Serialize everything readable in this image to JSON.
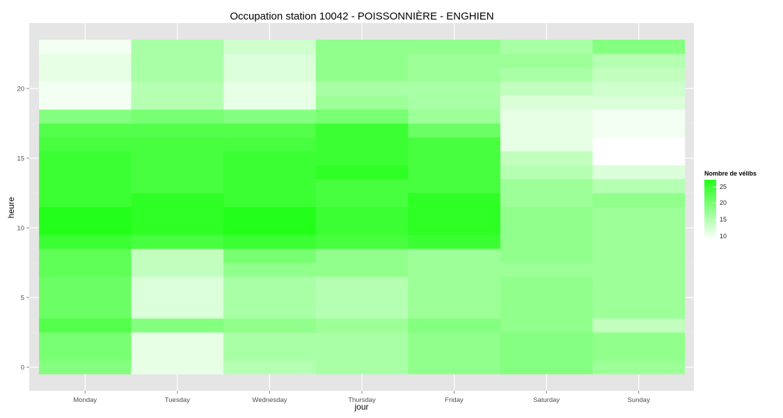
{
  "chart_data": {
    "type": "heatmap",
    "title": "Occupation station 10042 - POISSONNIÈRE - ENGHIEN",
    "xlabel": "jour",
    "ylabel": "heure",
    "categories": [
      "Monday",
      "Tuesday",
      "Wednesday",
      "Thursday",
      "Friday",
      "Saturday",
      "Sunday"
    ],
    "hours": [
      0,
      1,
      2,
      3,
      4,
      5,
      6,
      7,
      8,
      9,
      10,
      11,
      12,
      13,
      14,
      15,
      16,
      17,
      18,
      19,
      20,
      21,
      22,
      23
    ],
    "y_ticks": [
      0,
      5,
      10,
      15,
      20
    ],
    "ylim": [
      -0.5,
      23.5
    ],
    "legend": {
      "title": "Nombre de vélibs",
      "ticks": [
        10,
        15,
        20,
        25
      ],
      "low": 9,
      "high": 27,
      "low_color": "#ffffff",
      "high_color": "#22ff18",
      "position": "right"
    },
    "background_color": "#e5e5e5",
    "grid": true,
    "values": {
      "Monday": [
        19,
        20,
        20,
        23,
        21,
        21,
        21,
        22,
        22,
        25,
        27,
        27,
        25,
        25,
        25,
        25,
        24,
        23,
        19,
        10,
        10,
        11,
        11,
        10
      ],
      "Tuesday": [
        11,
        11,
        11,
        19,
        12,
        12,
        12,
        14,
        14,
        24,
        26,
        26,
        26,
        24,
        24,
        24,
        24,
        23,
        20,
        15,
        15,
        16,
        16,
        16
      ],
      "Wednesday": [
        15,
        16,
        16,
        18,
        16,
        16,
        16,
        18,
        20,
        25,
        27,
        27,
        25,
        25,
        25,
        25,
        24,
        23,
        19,
        11,
        11,
        12,
        12,
        13
      ],
      "Thursday": [
        16,
        16,
        16,
        17,
        15,
        15,
        15,
        18,
        18,
        24,
        25,
        25,
        24,
        24,
        26,
        25,
        25,
        25,
        20,
        17,
        16,
        18,
        18,
        18
      ],
      "Friday": [
        18,
        18,
        18,
        19,
        17,
        17,
        17,
        17,
        17,
        25,
        26,
        26,
        26,
        24,
        24,
        24,
        24,
        21,
        17,
        16,
        16,
        17,
        17,
        18
      ],
      "Saturday": [
        19,
        19,
        19,
        18,
        18,
        18,
        18,
        17,
        18,
        18,
        18,
        18,
        17,
        17,
        15,
        14,
        11,
        11,
        11,
        12,
        14,
        16,
        17,
        16
      ],
      "Sunday": [
        17,
        18,
        18,
        14,
        17,
        17,
        17,
        17,
        17,
        17,
        17,
        17,
        18,
        15,
        12,
        9,
        9,
        10,
        10,
        12,
        13,
        14,
        15,
        19
      ]
    }
  }
}
